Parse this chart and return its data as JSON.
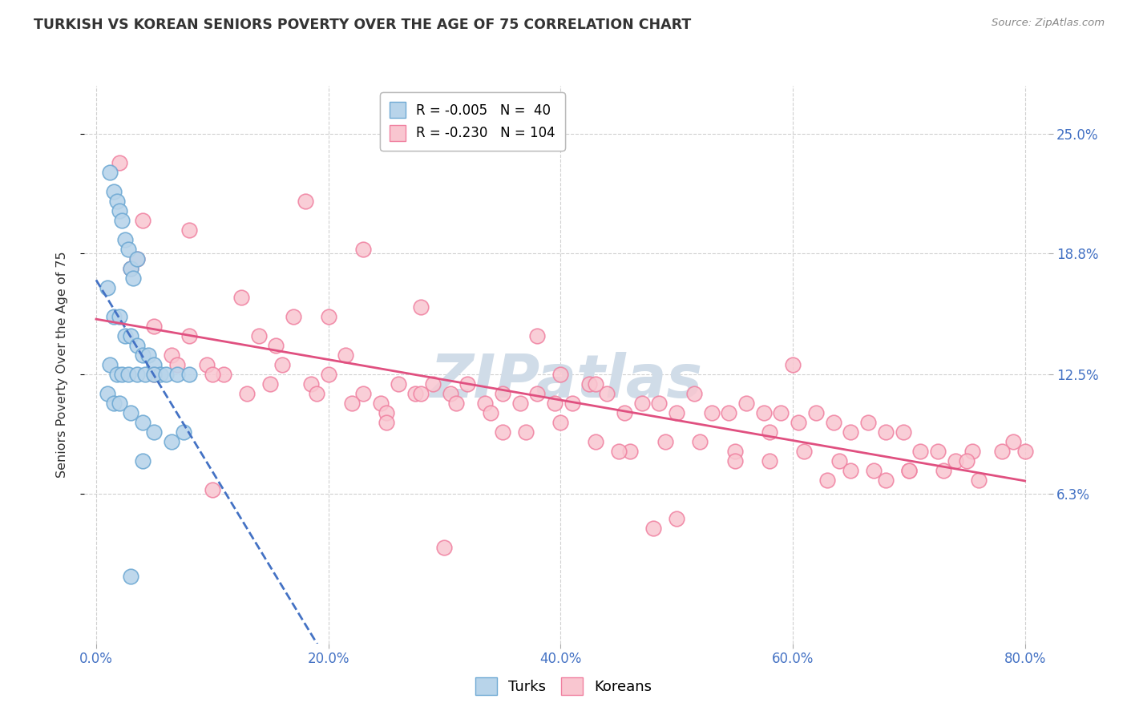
{
  "title": "TURKISH VS KOREAN SENIORS POVERTY OVER THE AGE OF 75 CORRELATION CHART",
  "source": "Source: ZipAtlas.com",
  "ylabel": "Seniors Poverty Over the Age of 75",
  "xlabel_ticks": [
    "0.0%",
    "20.0%",
    "40.0%",
    "60.0%",
    "80.0%"
  ],
  "xlabel_vals": [
    0.0,
    20.0,
    40.0,
    60.0,
    80.0
  ],
  "ylabel_ticks": [
    "6.3%",
    "12.5%",
    "18.8%",
    "25.0%"
  ],
  "ylabel_vals": [
    6.3,
    12.5,
    18.8,
    25.0
  ],
  "xlim": [
    -1.0,
    82.0
  ],
  "ylim": [
    -1.5,
    27.5
  ],
  "turkish_color": "#b8d4ea",
  "turkish_edge": "#70aad4",
  "korean_color": "#f9c6d0",
  "korean_edge": "#f080a0",
  "turkish_line_color": "#4472c4",
  "korean_line_color": "#e05080",
  "background_color": "#ffffff",
  "grid_color": "#d0d0d0",
  "title_color": "#333333",
  "axis_label_color": "#333333",
  "tick_label_color": "#4472c4",
  "watermark_color": "#d0dce8",
  "turkish_x": [
    1.2,
    1.5,
    1.8,
    2.0,
    2.2,
    2.5,
    2.8,
    3.0,
    3.2,
    3.5,
    1.0,
    1.5,
    2.0,
    2.5,
    3.0,
    3.5,
    4.0,
    4.5,
    5.0,
    5.5,
    1.2,
    1.8,
    2.2,
    2.8,
    3.5,
    4.2,
    5.0,
    6.0,
    7.0,
    8.0,
    1.0,
    1.5,
    2.0,
    3.0,
    4.0,
    5.0,
    6.5,
    7.5,
    3.0,
    4.0
  ],
  "turkish_y": [
    23.0,
    22.0,
    21.5,
    21.0,
    20.5,
    19.5,
    19.0,
    18.0,
    17.5,
    18.5,
    17.0,
    15.5,
    15.5,
    14.5,
    14.5,
    14.0,
    13.5,
    13.5,
    13.0,
    12.5,
    13.0,
    12.5,
    12.5,
    12.5,
    12.5,
    12.5,
    12.5,
    12.5,
    12.5,
    12.5,
    11.5,
    11.0,
    11.0,
    10.5,
    10.0,
    9.5,
    9.0,
    9.5,
    2.0,
    8.0
  ],
  "korean_x": [
    2.0,
    3.5,
    5.0,
    6.5,
    8.0,
    9.5,
    11.0,
    12.5,
    14.0,
    15.5,
    17.0,
    18.5,
    20.0,
    21.5,
    23.0,
    24.5,
    26.0,
    27.5,
    29.0,
    30.5,
    32.0,
    33.5,
    35.0,
    36.5,
    38.0,
    39.5,
    41.0,
    42.5,
    44.0,
    45.5,
    47.0,
    48.5,
    50.0,
    51.5,
    53.0,
    54.5,
    56.0,
    57.5,
    59.0,
    60.5,
    62.0,
    63.5,
    65.0,
    66.5,
    68.0,
    69.5,
    71.0,
    72.5,
    74.0,
    75.5,
    4.0,
    7.0,
    10.0,
    13.0,
    16.0,
    19.0,
    22.0,
    25.0,
    28.0,
    31.0,
    34.0,
    37.0,
    40.0,
    43.0,
    46.0,
    49.0,
    52.0,
    55.0,
    58.0,
    61.0,
    64.0,
    67.0,
    70.0,
    73.0,
    76.0,
    79.0,
    20.0,
    40.0,
    60.0,
    80.0,
    5.0,
    15.0,
    25.0,
    35.0,
    45.0,
    55.0,
    65.0,
    75.0,
    10.0,
    30.0,
    50.0,
    70.0,
    18.0,
    38.0,
    58.0,
    78.0,
    8.0,
    28.0,
    48.0,
    68.0,
    3.0,
    23.0,
    43.0,
    63.0
  ],
  "korean_y": [
    23.5,
    18.5,
    15.0,
    13.5,
    14.5,
    13.0,
    12.5,
    16.5,
    14.5,
    14.0,
    15.5,
    12.0,
    12.5,
    13.5,
    11.5,
    11.0,
    12.0,
    11.5,
    12.0,
    11.5,
    12.0,
    11.0,
    11.5,
    11.0,
    11.5,
    11.0,
    11.0,
    12.0,
    11.5,
    10.5,
    11.0,
    11.0,
    10.5,
    11.5,
    10.5,
    10.5,
    11.0,
    10.5,
    10.5,
    10.0,
    10.5,
    10.0,
    9.5,
    10.0,
    9.5,
    9.5,
    8.5,
    8.5,
    8.0,
    8.5,
    20.5,
    13.0,
    12.5,
    11.5,
    13.0,
    11.5,
    11.0,
    10.5,
    11.5,
    11.0,
    10.5,
    9.5,
    10.0,
    9.0,
    8.5,
    9.0,
    9.0,
    8.5,
    8.0,
    8.5,
    8.0,
    7.5,
    7.5,
    7.5,
    7.0,
    9.0,
    15.5,
    12.5,
    13.0,
    8.5,
    12.5,
    12.0,
    10.0,
    9.5,
    8.5,
    8.0,
    7.5,
    8.0,
    6.5,
    3.5,
    5.0,
    7.5,
    21.5,
    14.5,
    9.5,
    8.5,
    20.0,
    16.0,
    4.5,
    7.0,
    18.0,
    19.0,
    12.0,
    7.0
  ]
}
